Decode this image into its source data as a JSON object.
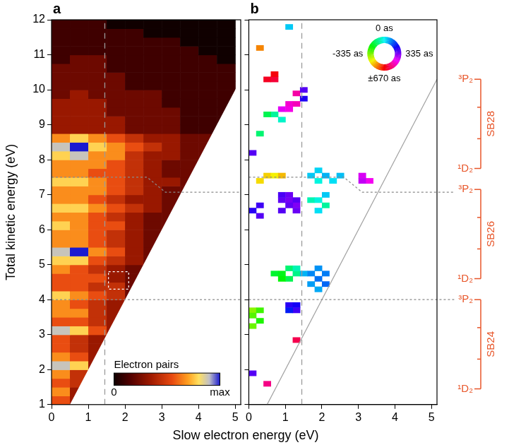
{
  "shared_x_label": "Slow electron energy (eV)",
  "chart_data": [
    {
      "type": "heatmap",
      "panel_label": "a",
      "y_label": "Total kinetic energy (eV)",
      "grid": false,
      "xlim": [
        0,
        5.15
      ],
      "ylim": [
        1,
        12
      ],
      "xticks": [
        0,
        1,
        2,
        3,
        4,
        5
      ],
      "yticks": [
        1,
        2,
        3,
        4,
        5,
        6,
        7,
        8,
        9,
        10,
        11,
        12
      ],
      "cells": {
        "cell_width": 0.5,
        "cell_height": 0.25,
        "x": [
          0.25,
          0.75,
          1.25,
          1.75,
          2.25,
          2.75,
          3.25,
          3.75,
          4.25,
          4.75
        ],
        "y": [
          1.125,
          1.375,
          1.625,
          1.875,
          2.125,
          2.375,
          2.625,
          2.875,
          3.125,
          3.375,
          3.625,
          3.875,
          4.125,
          4.375,
          4.625,
          4.875,
          5.125,
          5.375,
          5.625,
          5.875,
          6.125,
          6.375,
          6.625,
          6.875,
          7.125,
          7.375,
          7.625,
          7.875,
          8.125,
          8.375,
          8.625,
          8.875,
          9.125,
          9.375,
          9.625,
          9.875,
          10.125,
          10.375,
          10.625,
          10.875,
          11.125,
          11.375,
          11.625,
          11.875
        ],
        "z": [
          [
            5,
            3
          ],
          [
            6,
            3
          ],
          [
            5,
            4
          ],
          [
            6,
            4
          ],
          [
            8,
            7,
            3
          ],
          [
            6,
            5,
            3
          ],
          [
            5,
            4,
            3
          ],
          [
            5,
            4,
            3
          ],
          [
            8,
            7,
            5,
            3
          ],
          [
            5,
            5,
            4,
            3
          ],
          [
            6,
            6,
            4,
            3
          ],
          [
            6,
            5,
            4,
            3
          ],
          [
            7,
            6,
            5,
            4,
            2
          ],
          [
            5,
            5,
            4,
            4,
            2
          ],
          [
            5,
            5,
            5,
            3,
            2
          ],
          [
            6,
            5,
            4,
            3,
            2
          ],
          [
            7,
            7,
            5,
            4,
            3,
            2
          ],
          [
            8,
            9,
            6,
            5,
            3,
            2
          ],
          [
            6,
            6,
            5,
            4,
            3,
            2
          ],
          [
            6,
            6,
            5,
            4,
            3,
            2
          ],
          [
            7,
            6,
            5,
            5,
            3,
            2,
            2
          ],
          [
            6,
            6,
            5,
            4,
            3,
            2,
            2
          ],
          [
            7,
            7,
            6,
            5,
            4,
            3,
            2
          ],
          [
            6,
            6,
            5,
            4,
            3,
            3,
            2
          ],
          [
            6,
            6,
            6,
            5,
            4,
            3,
            2,
            2
          ],
          [
            7,
            7,
            6,
            5,
            4,
            3,
            3,
            2
          ],
          [
            6,
            6,
            5,
            5,
            4,
            3,
            2,
            2
          ],
          [
            6,
            6,
            6,
            5,
            4,
            3,
            2,
            2
          ],
          [
            7,
            8,
            6,
            6,
            4,
            3,
            3,
            2,
            2
          ],
          [
            8,
            9,
            7,
            6,
            5,
            4,
            3,
            2,
            2
          ],
          [
            6,
            7,
            6,
            5,
            4,
            3,
            3,
            2,
            2
          ],
          [
            3,
            3,
            3,
            3,
            2,
            2,
            2,
            1,
            1
          ],
          [
            3,
            3,
            3,
            3,
            2,
            2,
            2,
            1,
            1,
            1
          ],
          [
            3,
            3,
            3,
            2,
            2,
            2,
            2,
            1,
            1,
            1
          ],
          [
            3,
            3,
            3,
            2,
            2,
            2,
            1,
            1,
            1,
            1
          ],
          [
            2,
            3,
            2,
            2,
            2,
            2,
            1,
            1,
            1,
            1
          ],
          [
            2,
            2,
            2,
            2,
            1,
            1,
            1,
            1,
            1,
            1
          ],
          [
            2,
            2,
            2,
            2,
            1,
            1,
            1,
            1,
            1,
            1
          ],
          [
            2,
            2,
            2,
            1,
            1,
            1,
            1,
            1,
            1,
            1
          ],
          [
            1,
            2,
            2,
            1,
            1,
            1,
            1,
            1,
            1,
            0
          ],
          [
            1,
            1,
            1,
            1,
            1,
            1,
            1,
            1,
            0,
            0
          ],
          [
            1,
            1,
            1,
            1,
            1,
            1,
            1,
            0,
            0,
            0
          ],
          [
            1,
            1,
            1,
            1,
            1,
            0,
            0,
            0,
            0,
            0
          ],
          [
            1,
            1,
            1,
            0,
            0,
            0,
            0,
            0,
            0,
            0
          ]
        ]
      },
      "colorbar": {
        "label": "Electron pairs",
        "range": [
          0,
          9
        ],
        "ticks": [
          0,
          {
            "value": 9,
            "label": "max"
          }
        ]
      },
      "boundary": [
        [
          0.5,
          1
        ],
        [
          5,
          10
        ]
      ],
      "vertical_line_x": 1.45,
      "dotted_lines": [
        [
          [
            0,
            4.0
          ],
          [
            5.15,
            4.0
          ]
        ],
        [
          [
            0,
            7.5
          ],
          [
            2.6,
            7.5
          ],
          [
            3.1,
            7.07
          ],
          [
            5.15,
            7.07
          ]
        ]
      ],
      "highlight_box": {
        "x": [
          1.55,
          2.1
        ],
        "y": [
          4.3,
          4.8
        ]
      }
    },
    {
      "type": "heatmap",
      "panel_label": "b",
      "tick_labels": "x",
      "grid": false,
      "xlim": [
        0,
        5.15
      ],
      "ylim": [
        1,
        12
      ],
      "xticks": [
        0,
        1,
        2,
        3,
        4,
        5
      ],
      "yticks": [
        1,
        2,
        3,
        4,
        5,
        6,
        7,
        8,
        9,
        10,
        11,
        12
      ],
      "cells": {
        "cell_width": 0.2,
        "cell_height": 0.15,
        "x": [
          0.1,
          0.1,
          0.3,
          0.1,
          0.3,
          1.1,
          1.3,
          1.3,
          1.1,
          1.3,
          0.5,
          0.1,
          0.7,
          0.9,
          1.1,
          1.3,
          1.1,
          0.9,
          1.3,
          1.5,
          1.7,
          1.9,
          1.7,
          1.9,
          2.1,
          1.9,
          2.1,
          0.9,
          1.1,
          1.3,
          0.9,
          1.1,
          1.3,
          1.1,
          0.9,
          1.3,
          0.3,
          0.3,
          0.1,
          1.7,
          1.9,
          2.1,
          1.9,
          2.1,
          0.5,
          0.7,
          0.9,
          0.3,
          1.7,
          1.9,
          2.1,
          2.3,
          1.9,
          2.5,
          3.1,
          3.3,
          3.1,
          1.1,
          1.3,
          0.9,
          1.1,
          0.7,
          0.9,
          0.5,
          1.5,
          1.3,
          0.5,
          0.7,
          0.7,
          0.3,
          0.1,
          1.1,
          1.5,
          0.3
        ],
        "y": [
          3.7,
          3.55,
          3.4,
          3.25,
          3.7,
          3.85,
          3.85,
          3.7,
          3.7,
          2.85,
          1.6,
          1.9,
          4.75,
          4.75,
          4.6,
          4.75,
          4.9,
          4.6,
          4.9,
          4.75,
          4.75,
          4.6,
          4.45,
          4.9,
          4.75,
          4.3,
          4.45,
          6.85,
          6.85,
          6.85,
          7.0,
          7.0,
          6.7,
          6.7,
          6.55,
          6.55,
          6.7,
          6.4,
          6.55,
          6.85,
          6.85,
          6.7,
          6.55,
          7.0,
          7.55,
          7.55,
          7.55,
          7.4,
          7.55,
          7.7,
          7.55,
          7.4,
          7.4,
          7.55,
          7.55,
          7.4,
          7.4,
          9.6,
          9.6,
          9.45,
          9.45,
          9.3,
          9.15,
          9.3,
          9.75,
          9.9,
          10.3,
          10.3,
          10.45,
          8.75,
          8.2,
          11.8,
          10.0,
          11.2
        ],
        "delay": [
          -350,
          -300,
          -250,
          -320,
          -280,
          260,
          240,
          280,
          200,
          600,
          550,
          300,
          -180,
          -200,
          -150,
          -100,
          -120,
          -220,
          -60,
          60,
          100,
          120,
          80,
          90,
          110,
          70,
          130,
          310,
          330,
          300,
          290,
          320,
          340,
          310,
          300,
          320,
          280,
          300,
          260,
          -60,
          -20,
          -80,
          20,
          40,
          -480,
          -450,
          -500,
          -470,
          40,
          30,
          60,
          20,
          -20,
          50,
          420,
          450,
          400,
          480,
          500,
          430,
          460,
          -80,
          -40,
          -150,
          250,
          520,
          640,
          620,
          660,
          -120,
          300,
          40,
          300,
          -550
        ]
      },
      "color_wheel": {
        "range": [
          -670,
          670
        ],
        "ticks": [
          {
            "value": 0,
            "label": "0 as"
          },
          {
            "value": 335,
            "label": "335 as"
          },
          {
            "value": 670,
            "label": "±670 as"
          },
          {
            "value": -335,
            "label": "-335 as"
          }
        ]
      },
      "boundary": [
        [
          0.5,
          1
        ],
        [
          5,
          10
        ]
      ],
      "vertical_line_x": 1.45,
      "dotted_lines": [
        [
          [
            0,
            4.0
          ],
          [
            5.15,
            4.0
          ]
        ],
        [
          [
            0,
            7.5
          ],
          [
            2.6,
            7.5
          ],
          [
            3.1,
            7.07
          ],
          [
            5.15,
            7.07
          ]
        ]
      ],
      "sidebands": [
        {
          "label": "SB28",
          "levels": [
            {
              "value": 10.3,
              "label": "³P₂"
            },
            {
              "value": 7.75,
              "label": "¹D₂"
            }
          ],
          "ticks": [
            9.5,
            8.6
          ]
        },
        {
          "label": "SB26",
          "levels": [
            {
              "value": 7.15,
              "label": "³P₂"
            },
            {
              "value": 4.6,
              "label": "¹D₂"
            }
          ],
          "ticks": [
            6.35,
            5.45
          ]
        },
        {
          "label": "SB24",
          "levels": [
            {
              "value": 4.0,
              "label": "³P₂"
            },
            {
              "value": 1.45,
              "label": "¹D₂"
            }
          ],
          "ticks": [
            3.2,
            2.3
          ]
        }
      ]
    }
  ]
}
